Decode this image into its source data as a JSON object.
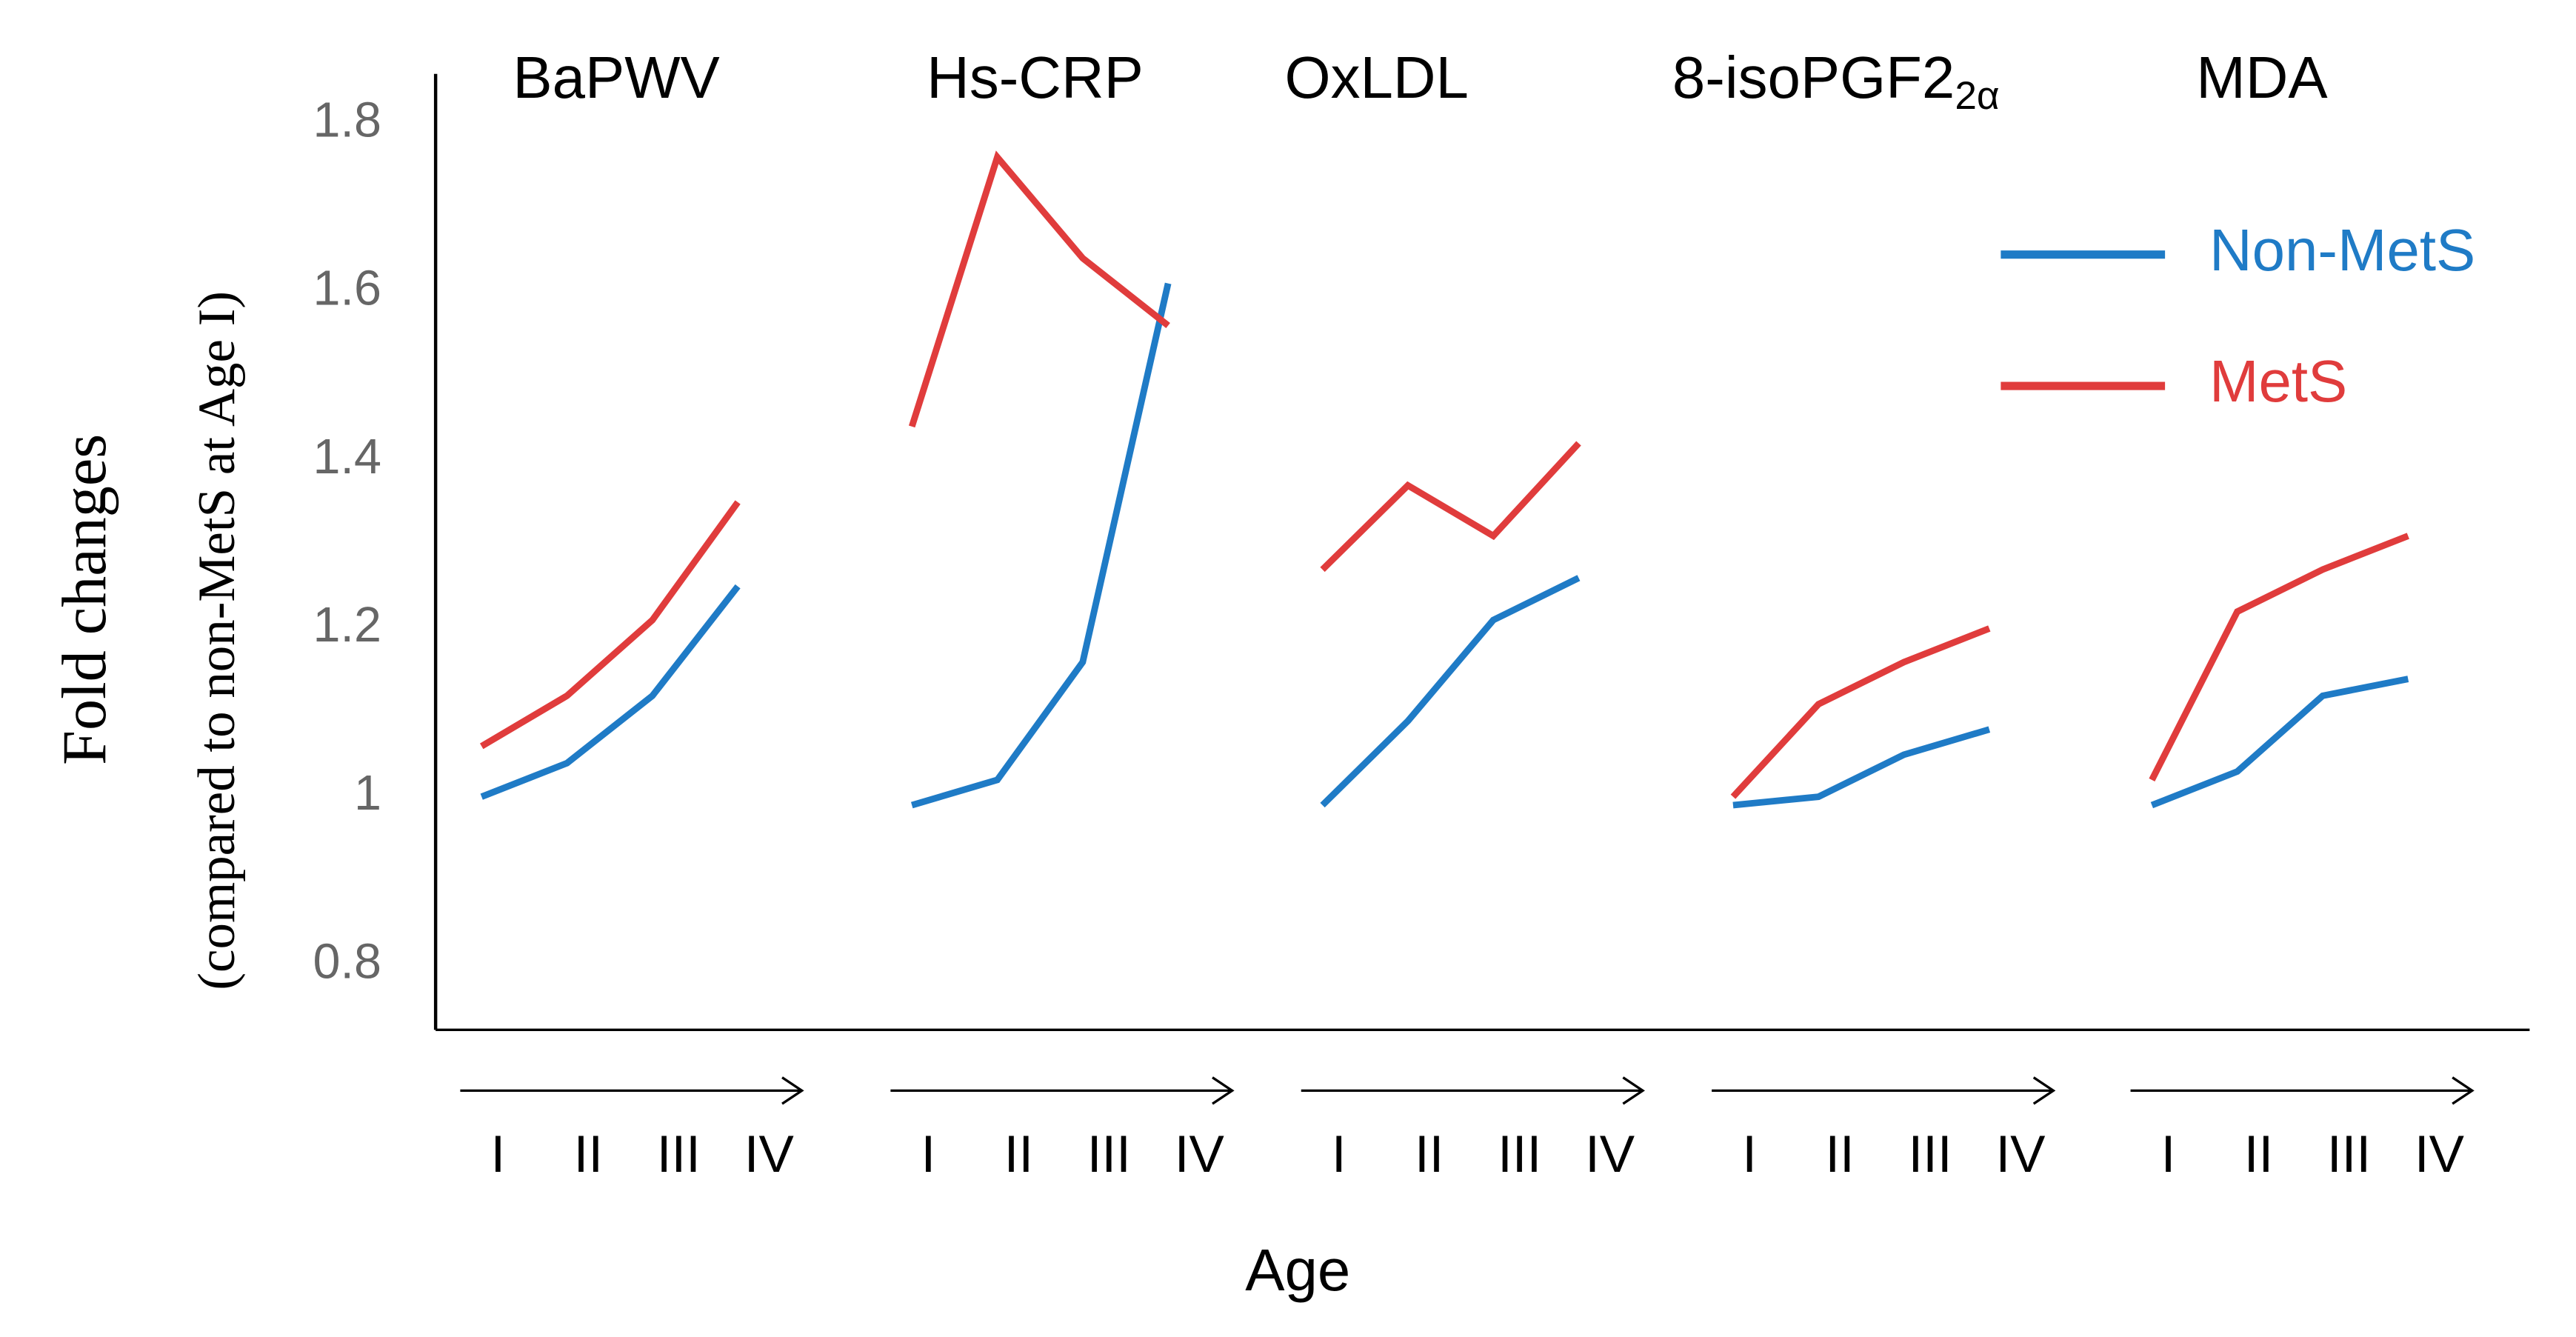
{
  "chart_data": {
    "type": "line",
    "ylabel": [
      "Fold changes",
      "(compared to non-MetS at Age I)"
    ],
    "xlabel": "Age",
    "ylim": [
      0.723,
      1.859
    ],
    "yticks": [
      0.8,
      1,
      1.2,
      1.4,
      1.6,
      1.8
    ],
    "series": [
      {
        "name": "Non-MetS",
        "color": "#1f7bc6"
      },
      {
        "name": "MetS",
        "color": "#e03c3c"
      }
    ],
    "panels": [
      {
        "title": "BaPWV",
        "categories": [
          "I",
          "II",
          "III",
          "IV"
        ],
        "values": [
          [
            1.0,
            1.04,
            1.12,
            1.25
          ],
          [
            1.06,
            1.12,
            1.21,
            1.35
          ]
        ]
      },
      {
        "title": "Hs-CRP",
        "categories": [
          "I",
          "II",
          "III",
          "IV"
        ],
        "values": [
          [
            0.99,
            1.02,
            1.16,
            1.61
          ],
          [
            1.44,
            1.76,
            1.64,
            1.56
          ]
        ]
      },
      {
        "title": "OxLDL",
        "categories": [
          "I",
          "II",
          "III",
          "IV"
        ],
        "values": [
          [
            0.99,
            1.09,
            1.21,
            1.26
          ],
          [
            1.27,
            1.37,
            1.31,
            1.42
          ]
        ]
      },
      {
        "title": "8-isoPGF2",
        "subscript": "2α",
        "categories": [
          "I",
          "II",
          "III",
          "IV"
        ],
        "values": [
          [
            0.99,
            1.0,
            1.05,
            1.08
          ],
          [
            1.0,
            1.11,
            1.16,
            1.2
          ]
        ]
      },
      {
        "title": "MDA",
        "categories": [
          "I",
          "II",
          "III",
          "IV"
        ],
        "values": [
          [
            0.99,
            1.03,
            1.12,
            1.14
          ],
          [
            1.02,
            1.22,
            1.27,
            1.31
          ]
        ]
      }
    ]
  }
}
